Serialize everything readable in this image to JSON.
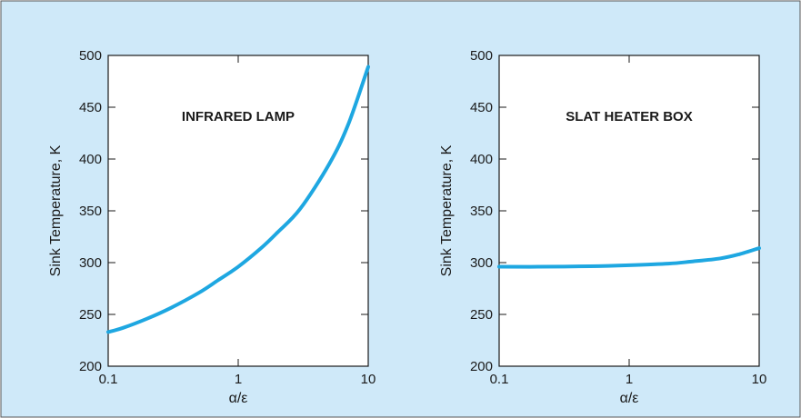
{
  "background_color": "#cfe9f9",
  "line_color": "#1ea7e1",
  "chart_data": [
    {
      "type": "line",
      "title": "INFRARED LAMP",
      "xlabel": "α/ε",
      "ylabel": "Sink Temperature, K",
      "x_scale": "log",
      "xlim": [
        0.1,
        10
      ],
      "ylim": [
        200,
        500
      ],
      "x_ticks": [
        0.1,
        1,
        10
      ],
      "x_tick_labels": [
        "0.1",
        "1",
        "10"
      ],
      "y_ticks": [
        200,
        250,
        300,
        350,
        400,
        450,
        500
      ],
      "y_tick_labels": [
        "200",
        "250",
        "300",
        "350",
        "400",
        "450",
        "500"
      ],
      "grid": false,
      "series": [
        {
          "x": [
            0.1,
            0.13,
            0.2,
            0.3,
            0.5,
            0.7,
            1.0,
            1.5,
            2.0,
            3.0,
            5.0,
            7.0,
            10.0
          ],
          "y": [
            233,
            237,
            246,
            256,
            271,
            283,
            296,
            314,
            329,
            352,
            395,
            433,
            489
          ]
        }
      ]
    },
    {
      "type": "line",
      "title": "SLAT HEATER BOX",
      "xlabel": "α/ε",
      "ylabel": "Sink Temperature, K",
      "x_scale": "log",
      "xlim": [
        0.1,
        10
      ],
      "ylim": [
        200,
        500
      ],
      "x_ticks": [
        0.1,
        1,
        10
      ],
      "x_tick_labels": [
        "0.1",
        "1",
        "10"
      ],
      "y_ticks": [
        200,
        250,
        300,
        350,
        400,
        450,
        500
      ],
      "y_tick_labels": [
        "200",
        "250",
        "300",
        "350",
        "400",
        "450",
        "500"
      ],
      "grid": false,
      "series": [
        {
          "x": [
            0.1,
            0.2,
            0.5,
            1.0,
            2.0,
            3.0,
            5.0,
            7.0,
            10.0
          ],
          "y": [
            296,
            296,
            296.5,
            297.5,
            299,
            301,
            304,
            308,
            314
          ]
        }
      ]
    }
  ]
}
